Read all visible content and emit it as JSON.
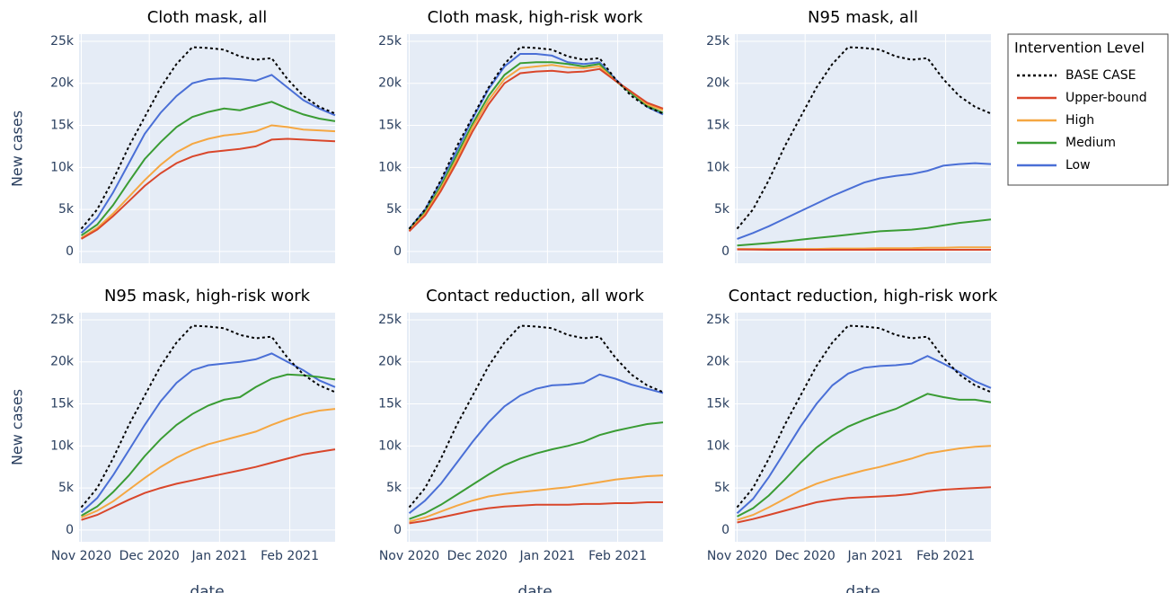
{
  "legend": {
    "title": "Intervention Level"
  },
  "chart_data": [
    {
      "type": "line",
      "title": "Cloth mask, all",
      "ylabel": "New cases",
      "x": [
        0,
        7,
        14,
        21,
        28,
        35,
        42,
        49,
        56,
        63,
        70,
        77,
        84,
        91,
        98,
        105,
        112
      ],
      "xlim": [
        -1,
        112
      ],
      "xticks": [
        0,
        30,
        61,
        92
      ],
      "ylim": [
        -1400,
        25850
      ],
      "yticks": [
        0,
        {
          "value": 5000,
          "label": "5k"
        },
        {
          "value": 10000,
          "label": "10k"
        },
        {
          "value": 15000,
          "label": "15k"
        },
        {
          "value": 20000,
          "label": "20k"
        },
        {
          "value": 25000,
          "label": "25k"
        }
      ],
      "series": [
        {
          "name": "BASE CASE",
          "color": "#000000",
          "dash": "dot",
          "values": [
            2700,
            5000,
            8500,
            12500,
            16000,
            19500,
            22300,
            24300,
            24200,
            24000,
            23200,
            22800,
            23000,
            20500,
            18500,
            17200,
            16400
          ]
        },
        {
          "name": "Upper-bound",
          "color": "#d9472b",
          "values": [
            1500,
            2600,
            4200,
            6000,
            7800,
            9300,
            10500,
            11300,
            11800,
            12000,
            12200,
            12500,
            13300,
            13400,
            13300,
            13200,
            13100
          ]
        },
        {
          "name": "High",
          "color": "#f5a742",
          "values": [
            1600,
            2800,
            4500,
            6500,
            8500,
            10300,
            11800,
            12800,
            13400,
            13800,
            14000,
            14300,
            15000,
            14800,
            14500,
            14400,
            14300
          ]
        },
        {
          "name": "Medium",
          "color": "#3a9c34",
          "values": [
            1900,
            3200,
            5500,
            8300,
            11000,
            13000,
            14800,
            16000,
            16600,
            17000,
            16800,
            17300,
            17800,
            17000,
            16300,
            15800,
            15500
          ]
        },
        {
          "name": "Low",
          "color": "#4a6fd6",
          "values": [
            2200,
            4000,
            7000,
            10500,
            14000,
            16500,
            18500,
            20000,
            20500,
            20600,
            20500,
            20300,
            21000,
            19500,
            18000,
            17000,
            16200
          ]
        }
      ]
    },
    {
      "type": "line",
      "title": "Cloth mask, high-risk work",
      "x": [
        0,
        7,
        14,
        21,
        28,
        35,
        42,
        49,
        56,
        63,
        70,
        77,
        84,
        91,
        98,
        105,
        112
      ],
      "xlim": [
        -1,
        112
      ],
      "xticks": [
        0,
        30,
        61,
        92
      ],
      "ylim": [
        -1400,
        25850
      ],
      "yticks": [
        0,
        {
          "value": 5000,
          "label": "5k"
        },
        {
          "value": 10000,
          "label": "10k"
        },
        {
          "value": 15000,
          "label": "15k"
        },
        {
          "value": 20000,
          "label": "20k"
        },
        {
          "value": 25000,
          "label": "25k"
        }
      ],
      "series": [
        {
          "name": "BASE CASE",
          "color": "#000000",
          "dash": "dot",
          "values": [
            2700,
            5000,
            8500,
            12500,
            16000,
            19500,
            22300,
            24300,
            24200,
            24000,
            23200,
            22800,
            23000,
            20500,
            18500,
            17200,
            16400
          ]
        },
        {
          "name": "Upper-bound",
          "color": "#d9472b",
          "values": [
            2400,
            4300,
            7200,
            10600,
            14300,
            17500,
            20000,
            21200,
            21400,
            21500,
            21300,
            21400,
            21700,
            20300,
            19000,
            17700,
            17000
          ]
        },
        {
          "name": "High",
          "color": "#f5a742",
          "values": [
            2500,
            4500,
            7500,
            11000,
            14800,
            18000,
            20500,
            21800,
            22000,
            22200,
            21900,
            21800,
            22000,
            20300,
            19000,
            17500,
            16800
          ]
        },
        {
          "name": "Medium",
          "color": "#3a9c34",
          "values": [
            2600,
            4700,
            7800,
            11500,
            15200,
            18500,
            21000,
            22400,
            22500,
            22500,
            22300,
            22000,
            22300,
            20300,
            18800,
            17300,
            16500
          ]
        },
        {
          "name": "Low",
          "color": "#4a6fd6",
          "values": [
            2700,
            5000,
            8300,
            12000,
            15800,
            19300,
            22000,
            23500,
            23500,
            23300,
            22500,
            22300,
            22500,
            20500,
            18800,
            17200,
            16300
          ]
        }
      ]
    },
    {
      "type": "line",
      "title": "N95 mask, all",
      "x": [
        0,
        7,
        14,
        21,
        28,
        35,
        42,
        49,
        56,
        63,
        70,
        77,
        84,
        91,
        98,
        105,
        112
      ],
      "xlim": [
        -1,
        112
      ],
      "xticks": [
        0,
        30,
        61,
        92
      ],
      "ylim": [
        -1400,
        25850
      ],
      "yticks": [
        0,
        {
          "value": 5000,
          "label": "5k"
        },
        {
          "value": 10000,
          "label": "10k"
        },
        {
          "value": 15000,
          "label": "15k"
        },
        {
          "value": 20000,
          "label": "20k"
        },
        {
          "value": 25000,
          "label": "25k"
        }
      ],
      "series": [
        {
          "name": "BASE CASE",
          "color": "#000000",
          "dash": "dot",
          "values": [
            2700,
            5000,
            8500,
            12500,
            16000,
            19500,
            22300,
            24300,
            24200,
            24000,
            23200,
            22800,
            23000,
            20500,
            18500,
            17200,
            16400
          ]
        },
        {
          "name": "Upper-bound",
          "color": "#d9472b",
          "values": [
            250,
            220,
            200,
            200,
            200,
            200,
            200,
            200,
            200,
            200,
            200,
            200,
            200,
            200,
            200,
            200,
            200
          ]
        },
        {
          "name": "High",
          "color": "#f5a742",
          "values": [
            300,
            300,
            300,
            300,
            300,
            300,
            350,
            350,
            350,
            400,
            400,
            400,
            450,
            450,
            500,
            500,
            500
          ]
        },
        {
          "name": "Medium",
          "color": "#3a9c34",
          "values": [
            700,
            850,
            1000,
            1200,
            1400,
            1600,
            1800,
            2000,
            2200,
            2400,
            2500,
            2600,
            2800,
            3100,
            3400,
            3600,
            3800
          ]
        },
        {
          "name": "Low",
          "color": "#4a6fd6",
          "values": [
            1500,
            2200,
            3000,
            3900,
            4800,
            5700,
            6600,
            7400,
            8200,
            8700,
            9000,
            9200,
            9600,
            10200,
            10400,
            10500,
            10400
          ]
        }
      ]
    },
    {
      "type": "line",
      "title": "N95 mask, high-risk work",
      "ylabel": "New cases",
      "xlabel": "date",
      "x": [
        0,
        7,
        14,
        21,
        28,
        35,
        42,
        49,
        56,
        63,
        70,
        77,
        84,
        91,
        98,
        105,
        112
      ],
      "xlim": [
        -1,
        112
      ],
      "xticks": [
        {
          "value": 0,
          "label": "Nov 2020"
        },
        {
          "value": 30,
          "label": "Dec 2020"
        },
        {
          "value": 61,
          "label": "Jan 2021"
        },
        {
          "value": 92,
          "label": "Feb 2021"
        }
      ],
      "ylim": [
        -1400,
        25850
      ],
      "yticks": [
        0,
        {
          "value": 5000,
          "label": "5k"
        },
        {
          "value": 10000,
          "label": "10k"
        },
        {
          "value": 15000,
          "label": "15k"
        },
        {
          "value": 20000,
          "label": "20k"
        },
        {
          "value": 25000,
          "label": "25k"
        }
      ],
      "series": [
        {
          "name": "BASE CASE",
          "color": "#000000",
          "dash": "dot",
          "values": [
            2700,
            5000,
            8500,
            12500,
            16000,
            19500,
            22300,
            24300,
            24200,
            24000,
            23200,
            22800,
            23000,
            20500,
            18500,
            17200,
            16400
          ]
        },
        {
          "name": "Upper-bound",
          "color": "#d9472b",
          "values": [
            1200,
            1800,
            2700,
            3600,
            4400,
            5000,
            5500,
            5900,
            6300,
            6700,
            7100,
            7500,
            8000,
            8500,
            9000,
            9300,
            9600
          ]
        },
        {
          "name": "High",
          "color": "#f5a742",
          "values": [
            1500,
            2300,
            3400,
            4800,
            6200,
            7500,
            8600,
            9500,
            10200,
            10700,
            11200,
            11700,
            12500,
            13200,
            13800,
            14200,
            14400
          ]
        },
        {
          "name": "Medium",
          "color": "#3a9c34",
          "values": [
            1700,
            2800,
            4500,
            6500,
            8800,
            10800,
            12500,
            13800,
            14800,
            15500,
            15800,
            17000,
            18000,
            18500,
            18400,
            18200,
            17900
          ]
        },
        {
          "name": "Low",
          "color": "#4a6fd6",
          "values": [
            2100,
            3800,
            6500,
            9500,
            12500,
            15300,
            17500,
            19000,
            19600,
            19800,
            20000,
            20300,
            21000,
            20000,
            19000,
            17800,
            17000
          ]
        }
      ]
    },
    {
      "type": "line",
      "title": "Contact reduction, all work",
      "xlabel": "date",
      "x": [
        0,
        7,
        14,
        21,
        28,
        35,
        42,
        49,
        56,
        63,
        70,
        77,
        84,
        91,
        98,
        105,
        112
      ],
      "xlim": [
        -1,
        112
      ],
      "xticks": [
        {
          "value": 0,
          "label": "Nov 2020"
        },
        {
          "value": 30,
          "label": "Dec 2020"
        },
        {
          "value": 61,
          "label": "Jan 2021"
        },
        {
          "value": 92,
          "label": "Feb 2021"
        }
      ],
      "ylim": [
        -1400,
        25850
      ],
      "yticks": [
        0,
        {
          "value": 5000,
          "label": "5k"
        },
        {
          "value": 10000,
          "label": "10k"
        },
        {
          "value": 15000,
          "label": "15k"
        },
        {
          "value": 20000,
          "label": "20k"
        },
        {
          "value": 25000,
          "label": "25k"
        }
      ],
      "series": [
        {
          "name": "BASE CASE",
          "color": "#000000",
          "dash": "dot",
          "values": [
            2700,
            5000,
            8500,
            12500,
            16000,
            19500,
            22300,
            24300,
            24200,
            24000,
            23200,
            22800,
            23000,
            20500,
            18500,
            17200,
            16400
          ]
        },
        {
          "name": "Upper-bound",
          "color": "#d9472b",
          "values": [
            800,
            1100,
            1500,
            1900,
            2300,
            2600,
            2800,
            2900,
            3000,
            3000,
            3000,
            3100,
            3100,
            3200,
            3200,
            3300,
            3300
          ]
        },
        {
          "name": "High",
          "color": "#f5a742",
          "values": [
            1000,
            1500,
            2200,
            2900,
            3500,
            4000,
            4300,
            4500,
            4700,
            4900,
            5100,
            5400,
            5700,
            6000,
            6200,
            6400,
            6500
          ]
        },
        {
          "name": "Medium",
          "color": "#3a9c34",
          "values": [
            1300,
            2000,
            3000,
            4200,
            5400,
            6600,
            7700,
            8500,
            9100,
            9600,
            10000,
            10500,
            11300,
            11800,
            12200,
            12600,
            12800
          ]
        },
        {
          "name": "Low",
          "color": "#4a6fd6",
          "values": [
            2000,
            3500,
            5500,
            8000,
            10500,
            12800,
            14700,
            16000,
            16800,
            17200,
            17300,
            17500,
            18500,
            18000,
            17300,
            16800,
            16300
          ]
        }
      ]
    },
    {
      "type": "line",
      "title": "Contact reduction, high-risk work",
      "xlabel": "date",
      "x": [
        0,
        7,
        14,
        21,
        28,
        35,
        42,
        49,
        56,
        63,
        70,
        77,
        84,
        91,
        98,
        105,
        112
      ],
      "xlim": [
        -1,
        112
      ],
      "xticks": [
        {
          "value": 0,
          "label": "Nov 2020"
        },
        {
          "value": 30,
          "label": "Dec 2020"
        },
        {
          "value": 61,
          "label": "Jan 2021"
        },
        {
          "value": 92,
          "label": "Feb 2021"
        }
      ],
      "ylim": [
        -1400,
        25850
      ],
      "yticks": [
        0,
        {
          "value": 5000,
          "label": "5k"
        },
        {
          "value": 10000,
          "label": "10k"
        },
        {
          "value": 15000,
          "label": "15k"
        },
        {
          "value": 20000,
          "label": "20k"
        },
        {
          "value": 25000,
          "label": "25k"
        }
      ],
      "series": [
        {
          "name": "BASE CASE",
          "color": "#000000",
          "dash": "dot",
          "values": [
            2700,
            5000,
            8500,
            12500,
            16000,
            19500,
            22300,
            24300,
            24200,
            24000,
            23200,
            22800,
            23000,
            20500,
            18500,
            17200,
            16400
          ]
        },
        {
          "name": "Upper-bound",
          "color": "#d9472b",
          "values": [
            900,
            1300,
            1800,
            2300,
            2800,
            3300,
            3600,
            3800,
            3900,
            4000,
            4100,
            4300,
            4600,
            4800,
            4900,
            5000,
            5100
          ]
        },
        {
          "name": "High",
          "color": "#f5a742",
          "values": [
            1200,
            1800,
            2700,
            3700,
            4700,
            5500,
            6100,
            6600,
            7100,
            7500,
            8000,
            8500,
            9100,
            9400,
            9700,
            9900,
            10000
          ]
        },
        {
          "name": "Medium",
          "color": "#3a9c34",
          "values": [
            1600,
            2600,
            4100,
            6000,
            8000,
            9800,
            11200,
            12300,
            13100,
            13800,
            14400,
            15300,
            16200,
            15800,
            15500,
            15500,
            15200
          ]
        },
        {
          "name": "Low",
          "color": "#4a6fd6",
          "values": [
            2000,
            3700,
            6300,
            9300,
            12300,
            15000,
            17200,
            18600,
            19300,
            19500,
            19600,
            19800,
            20700,
            19800,
            18800,
            17700,
            16900
          ]
        }
      ]
    }
  ]
}
